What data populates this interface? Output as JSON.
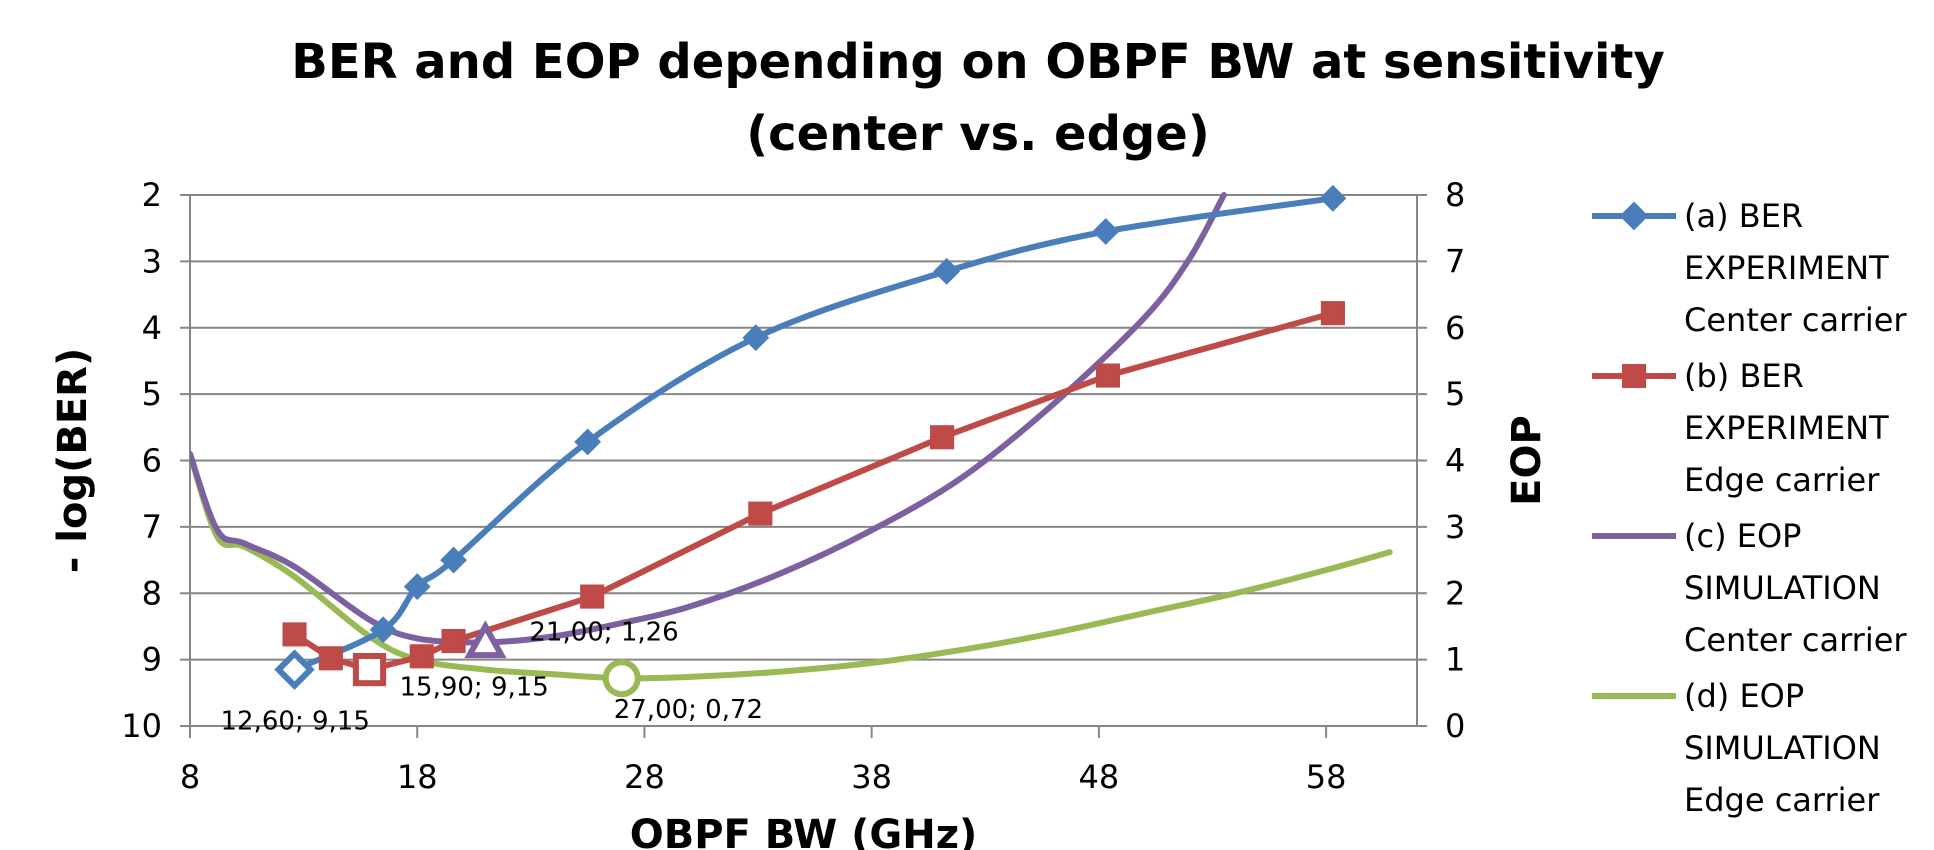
{
  "chart_data": {
    "type": "line",
    "title_lines": [
      "BER and EOP depending on OBPF BW at sensitivity",
      "(center vs. edge)"
    ],
    "xlabel": "OBPF BW (GHz)",
    "ylabel_left": "- log(BER)",
    "ylabel_right": "EOP",
    "xlim": [
      8,
      62
    ],
    "ylim_left": [
      2,
      10
    ],
    "ylim_left_inverted": true,
    "ylim_right": [
      0,
      8
    ],
    "x_ticks": [
      "8",
      "18",
      "28",
      "38",
      "48",
      "58"
    ],
    "y_left_ticks": [
      "2",
      "3",
      "4",
      "5",
      "6",
      "7",
      "8",
      "9",
      "10"
    ],
    "y_right_ticks": [
      "0",
      "1",
      "2",
      "3",
      "4",
      "5",
      "6",
      "7",
      "8"
    ],
    "grid": true,
    "legend_position": "right",
    "series": [
      {
        "name_lines": [
          "(a) BER",
          "EXPERIMENT",
          "Center carrier"
        ],
        "axis": "left",
        "color": "#4a7ebb",
        "marker": "diamond",
        "smooth": true,
        "x": [
          12.6,
          16.5,
          18.0,
          19.6,
          25.5,
          32.9,
          41.3,
          48.3,
          58.3
        ],
        "y": [
          9.15,
          8.55,
          7.9,
          7.5,
          5.72,
          4.15,
          3.15,
          2.55,
          2.05
        ]
      },
      {
        "name_lines": [
          "(b) BER",
          "EXPERIMENT",
          "Edge carrier"
        ],
        "axis": "left",
        "color": "#be4b48",
        "marker": "square",
        "smooth": false,
        "x": [
          12.6,
          14.2,
          15.9,
          18.2,
          19.6,
          25.7,
          33.1,
          41.1,
          48.4,
          58.3
        ],
        "y": [
          8.62,
          8.98,
          9.15,
          8.95,
          8.72,
          8.05,
          6.8,
          5.65,
          4.72,
          3.78
        ]
      },
      {
        "name_lines": [
          "(c) EOP",
          "SIMULATION",
          "Center carrier"
        ],
        "axis": "right",
        "color": "#7d60a0",
        "marker": "none",
        "smooth": true,
        "x": [
          8,
          9.2,
          10.4,
          12.6,
          15.9,
          18,
          21,
          24,
          27,
          30,
          34,
          38,
          42,
          46,
          50,
          52,
          53.5
        ],
        "y": [
          4.1,
          2.95,
          2.75,
          2.4,
          1.6,
          1.32,
          1.26,
          1.35,
          1.55,
          1.8,
          2.3,
          2.95,
          3.75,
          4.85,
          6.15,
          7.05,
          8.0
        ]
      },
      {
        "name_lines": [
          "(d) EOP",
          "SIMULATION",
          "Edge carrier"
        ],
        "axis": "right",
        "color": "#98b954",
        "marker": "none",
        "smooth": true,
        "x": [
          8,
          9.2,
          10.4,
          12.6,
          15.9,
          18,
          21,
          24,
          27,
          30,
          34,
          38,
          42,
          46,
          50,
          54,
          58,
          60.8
        ],
        "y": [
          4.1,
          2.85,
          2.7,
          2.25,
          1.35,
          1.0,
          0.85,
          0.78,
          0.72,
          0.74,
          0.82,
          0.95,
          1.15,
          1.4,
          1.7,
          2.0,
          2.35,
          2.62
        ]
      }
    ],
    "annotations": [
      {
        "text": "12,60; 9,15",
        "x": 12.6,
        "y": 9.15,
        "axis": "left",
        "color": "#4a7ebb",
        "marker": "diamond"
      },
      {
        "text": "15,90; 9,15",
        "x": 15.9,
        "y": 9.15,
        "axis": "left",
        "color": "#be4b48",
        "marker": "square"
      },
      {
        "text": "21,00; 1,26",
        "x": 21.0,
        "y": 1.26,
        "axis": "right",
        "color": "#7d60a0",
        "marker": "triangle"
      },
      {
        "text": "27,00; 0,72",
        "x": 27.0,
        "y": 0.72,
        "axis": "right",
        "color": "#98b954",
        "marker": "circle"
      }
    ]
  }
}
